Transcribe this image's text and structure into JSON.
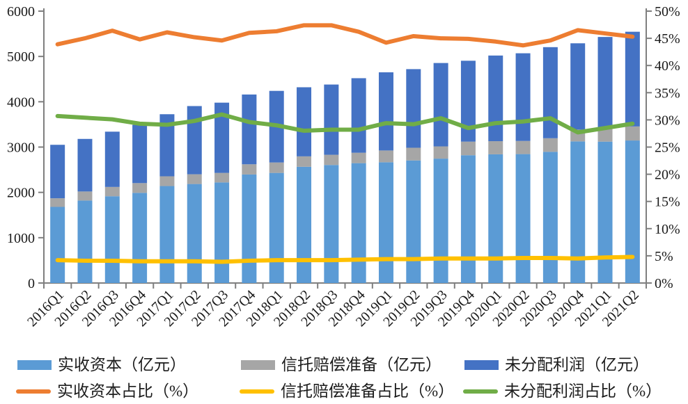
{
  "chart_data": {
    "type": "combo-stacked-bar-line",
    "title": "",
    "categories": [
      "2016Q1",
      "2016Q2",
      "2016Q3",
      "2016Q4",
      "2017Q1",
      "2017Q2",
      "2017Q3",
      "2017Q4",
      "2018Q1",
      "2018Q2",
      "2018Q3",
      "2018Q4",
      "2019Q1",
      "2019Q2",
      "2019Q3",
      "2019Q4",
      "2020Q1",
      "2020Q2",
      "2020Q3",
      "2020Q4",
      "2021Q1",
      "2021Q2"
    ],
    "bar_series": [
      {
        "name": "实收资本（亿元）",
        "color": "#5B9BD5",
        "axis": "left",
        "values": [
          1680,
          1820,
          1915,
          1990,
          2140,
          2185,
          2220,
          2395,
          2430,
          2565,
          2605,
          2645,
          2665,
          2705,
          2745,
          2820,
          2840,
          2845,
          2895,
          3125,
          3120,
          3145
        ]
      },
      {
        "name": "信托赔偿准备（亿元）",
        "color": "#A6A6A6",
        "axis": "left",
        "values": [
          190,
          200,
          205,
          215,
          215,
          215,
          210,
          225,
          230,
          230,
          225,
          230,
          260,
          280,
          270,
          300,
          290,
          290,
          300,
          260,
          295,
          310
        ]
      },
      {
        "name": "未分配利润（亿元）",
        "color": "#4472C4",
        "axis": "left",
        "values": [
          1180,
          1160,
          1220,
          1285,
          1370,
          1505,
          1550,
          1540,
          1580,
          1525,
          1550,
          1645,
          1725,
          1735,
          1840,
          1785,
          1890,
          1935,
          2010,
          1905,
          2015,
          2090
        ]
      }
    ],
    "line_series": [
      {
        "name": "实收资本占比（%）",
        "color": "#ED7D31",
        "axis": "right",
        "values": [
          43.9,
          45.0,
          46.4,
          44.8,
          46.1,
          45.2,
          44.6,
          46.0,
          46.3,
          47.4,
          47.4,
          46.2,
          44.2,
          45.4,
          45.0,
          44.9,
          44.4,
          43.7,
          44.6,
          46.5,
          45.9,
          45.3
        ]
      },
      {
        "name": "信托赔偿准备占比（%）",
        "color": "#FFC000",
        "axis": "right",
        "values": [
          4.2,
          4.1,
          4.1,
          4.0,
          4.0,
          4.0,
          3.9,
          4.1,
          4.2,
          4.2,
          4.2,
          4.3,
          4.4,
          4.4,
          4.5,
          4.5,
          4.5,
          4.6,
          4.6,
          4.5,
          4.7,
          4.8
        ]
      },
      {
        "name": "未分配利润占比（%）",
        "color": "#70AD47",
        "axis": "right",
        "values": [
          30.7,
          30.4,
          30.1,
          29.3,
          29.1,
          29.8,
          31.0,
          29.6,
          29.0,
          28.0,
          28.2,
          28.2,
          29.4,
          29.2,
          30.3,
          28.5,
          29.4,
          29.7,
          30.3,
          27.7,
          28.5,
          29.3
        ]
      }
    ],
    "left_axis": {
      "min": 0,
      "max": 6000,
      "step": 1000,
      "tick_labels": [
        "0",
        "1000",
        "2000",
        "3000",
        "4000",
        "5000",
        "6000"
      ]
    },
    "right_axis": {
      "min": 0,
      "max": 50,
      "step": 5,
      "tick_labels": [
        "0%",
        "5%",
        "10%",
        "15%",
        "20%",
        "25%",
        "30%",
        "35%",
        "40%",
        "45%",
        "50%"
      ]
    },
    "grid": false,
    "legend_position": "bottom",
    "axis_color": "#7f7f7f",
    "text_color": "#1a1a1a"
  }
}
